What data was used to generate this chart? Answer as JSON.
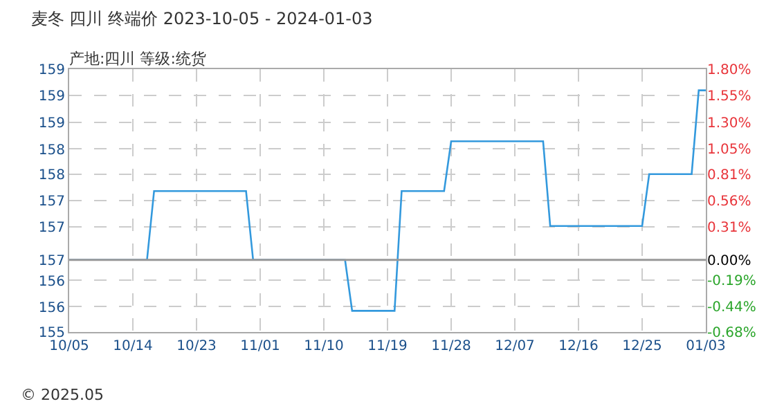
{
  "chart_data": {
    "type": "line",
    "title": "麦冬 四川 终端价 2023-10-05 - 2024-01-03",
    "subtitle": "产地:四川 等级:统货",
    "x": [
      "2023-10-05",
      "2023-10-16",
      "2023-10-17",
      "2023-10-30",
      "2023-10-31",
      "2023-11-13",
      "2023-11-14",
      "2023-11-20",
      "2023-11-21",
      "2023-11-27",
      "2023-11-28",
      "2023-12-11",
      "2023-12-12",
      "2023-12-25",
      "2023-12-26",
      "2024-01-01",
      "2024-01-02",
      "2024-01-03"
    ],
    "series": [
      {
        "color": "#3399dd",
        "axis": "y2",
        "values": [
          0,
          0,
          0.65,
          0.65,
          0,
          0,
          -0.48,
          -0.48,
          0.65,
          0.65,
          1.12,
          1.12,
          0.32,
          0.32,
          0.81,
          0.81,
          1.6,
          1.6
        ]
      }
    ],
    "xlim": [
      "2023-10-05",
      "2024-01-03"
    ],
    "xticks": [
      {
        "value": "2023-10-05",
        "label": "10/05"
      },
      {
        "value": "2023-10-14",
        "label": "10/14"
      },
      {
        "value": "2023-10-23",
        "label": "10/23"
      },
      {
        "value": "2023-11-01",
        "label": "11/01"
      },
      {
        "value": "2023-11-10",
        "label": "11/10"
      },
      {
        "value": "2023-11-19",
        "label": "11/19"
      },
      {
        "value": "2023-11-28",
        "label": "11/28"
      },
      {
        "value": "2023-12-07",
        "label": "12/07"
      },
      {
        "value": "2023-12-16",
        "label": "12/16"
      },
      {
        "value": "2023-12-25",
        "label": "12/25"
      },
      {
        "value": "2024-01-03",
        "label": "01/03"
      }
    ],
    "ylim": [
      155.46,
      159.34
    ],
    "yticks": [
      {
        "value": 159.34,
        "label": "159"
      },
      {
        "value": 158.95,
        "label": "159"
      },
      {
        "value": 158.55,
        "label": "159"
      },
      {
        "value": 158.16,
        "label": "158"
      },
      {
        "value": 157.79,
        "label": "158"
      },
      {
        "value": 157.4,
        "label": "157"
      },
      {
        "value": 157.01,
        "label": "157"
      },
      {
        "value": 156.52,
        "label": "157"
      },
      {
        "value": 156.22,
        "label": "156"
      },
      {
        "value": 155.83,
        "label": "156"
      },
      {
        "value": 155.46,
        "label": "155"
      }
    ],
    "y2lim": [
      -0.68,
      1.8
    ],
    "y2ticks": [
      {
        "value": 1.8,
        "label": "1.80%"
      },
      {
        "value": 1.55,
        "label": "1.55%"
      },
      {
        "value": 1.3,
        "label": "1.30%"
      },
      {
        "value": 1.05,
        "label": "1.05%"
      },
      {
        "value": 0.81,
        "label": "0.81%"
      },
      {
        "value": 0.56,
        "label": "0.56%"
      },
      {
        "value": 0.31,
        "label": "0.31%"
      },
      {
        "value": 0,
        "label": "0.00%"
      },
      {
        "value": -0.19,
        "label": "-0.19%"
      },
      {
        "value": -0.44,
        "label": "-0.44%"
      },
      {
        "value": -0.68,
        "label": "-0.68%"
      }
    ],
    "ref_lines": [
      {
        "axis": "y2",
        "value": 0,
        "color": "#999999"
      }
    ],
    "annotations": [
      "© 2025.05"
    ],
    "grid": true,
    "marker": "none",
    "line_style": "solid"
  }
}
